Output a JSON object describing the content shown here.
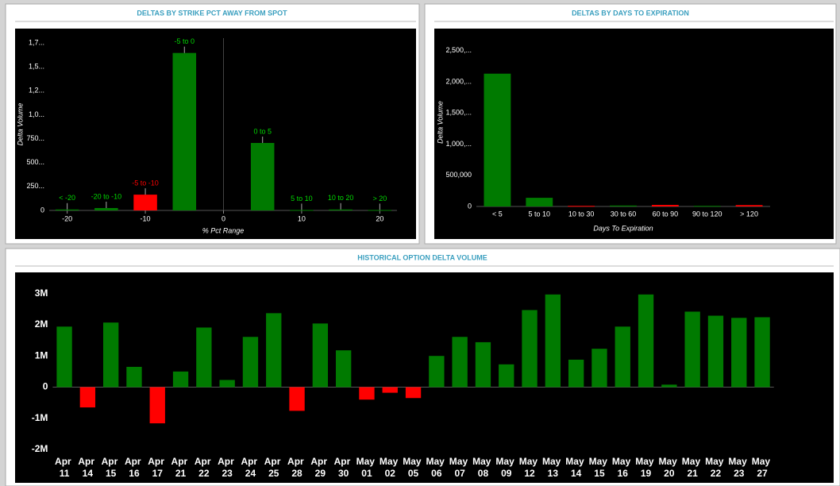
{
  "chart_data": [
    {
      "type": "bar",
      "title": "DELTAS BY STRIKE PCT AWAY FROM SPOT",
      "x_label": "% Pct Range",
      "y_label": "Delta Volume",
      "x": [
        -20,
        -15,
        -10,
        -5,
        5,
        10,
        15,
        20
      ],
      "labels": [
        "< -20",
        "-20 to -10",
        "-5 to -10",
        "-5 to 0",
        "0 to 5",
        "5 to 10",
        "10 to 20",
        "> 20"
      ],
      "values": [
        10,
        25,
        165,
        1645,
        705,
        5,
        10,
        5
      ],
      "colors": [
        "#007a00",
        "#007a00",
        "#ff0000",
        "#007a00",
        "#007a00",
        "#007a00",
        "#007a00",
        "#007a00"
      ],
      "bar_width": 3,
      "xlim": [
        -22.3,
        22.2
      ],
      "xticks": [
        -20,
        -10,
        0,
        10,
        20
      ],
      "ylim": [
        0,
        1800
      ],
      "yticks": [
        0,
        {
          "value": 250,
          "label": "250..."
        },
        {
          "value": 500,
          "label": "500..."
        },
        {
          "value": 750,
          "label": "750..."
        },
        {
          "value": 1000,
          "label": "1,0..."
        },
        {
          "value": 1250,
          "label": "1,2..."
        },
        {
          "value": 1500,
          "label": "1,5..."
        },
        {
          "value": 1750,
          "label": "1,7..."
        }
      ]
    },
    {
      "type": "bar",
      "title": "DELTAS BY DAYS TO EXPIRATION",
      "x_label": "Days To Expiration",
      "y_label": "Delta Volume",
      "categories": [
        "< 5",
        "5 to 10",
        "10 to 30",
        "30 to 60",
        "60 to 90",
        "90 to 120",
        "> 120"
      ],
      "values": [
        2130000,
        139000,
        10000,
        15000,
        25000,
        10000,
        22000
      ],
      "colors": [
        "#007a00",
        "#007a00",
        "#ff0000",
        "#007a00",
        "#ff0000",
        "#007a00",
        "#ff0000"
      ],
      "ylim": [
        0,
        2700000
      ],
      "yticks": [
        0,
        {
          "value": 500000,
          "label": "500,000"
        },
        {
          "value": 1000000,
          "label": "1,000,..."
        },
        {
          "value": 1500000,
          "label": "1,500,..."
        },
        {
          "value": 2000000,
          "label": "2,000,..."
        },
        {
          "value": 2500000,
          "label": "2,500,..."
        }
      ]
    },
    {
      "type": "bar",
      "title": "HISTORICAL OPTION DELTA VOLUME",
      "categories": [
        "Apr 11",
        "Apr 14",
        "Apr 15",
        "Apr 16",
        "Apr 17",
        "Apr 21",
        "Apr 22",
        "Apr 23",
        "Apr 24",
        "Apr 25",
        "Apr 28",
        "Apr 29",
        "Apr 30",
        "May 01",
        "May 02",
        "May 05",
        "May 06",
        "May 07",
        "May 08",
        "May 09",
        "May 12",
        "May 13",
        "May 14",
        "May 15",
        "May 16",
        "May 19",
        "May 20",
        "May 21",
        "May 22",
        "May 23",
        "May 27"
      ],
      "values": [
        1940000,
        -650000,
        2070000,
        650000,
        -1160000,
        500000,
        1910000,
        230000,
        1610000,
        2370000,
        -760000,
        2040000,
        1180000,
        -400000,
        -180000,
        -350000,
        1000000,
        1610000,
        1440000,
        730000,
        2470000,
        2970000,
        880000,
        1230000,
        1940000,
        2970000,
        80000,
        2420000,
        2290000,
        2220000,
        2240000
      ],
      "positive_color": "#007a00",
      "negative_color": "#ff0000",
      "ylim": [
        -2100000,
        3500000
      ],
      "yticks": [
        {
          "value": -2000000,
          "label": "-2M"
        },
        {
          "value": -1000000,
          "label": "-1M"
        },
        0,
        {
          "value": 1000000,
          "label": "1M"
        },
        {
          "value": 2000000,
          "label": "2M"
        },
        {
          "value": 3000000,
          "label": "3M"
        }
      ]
    }
  ]
}
